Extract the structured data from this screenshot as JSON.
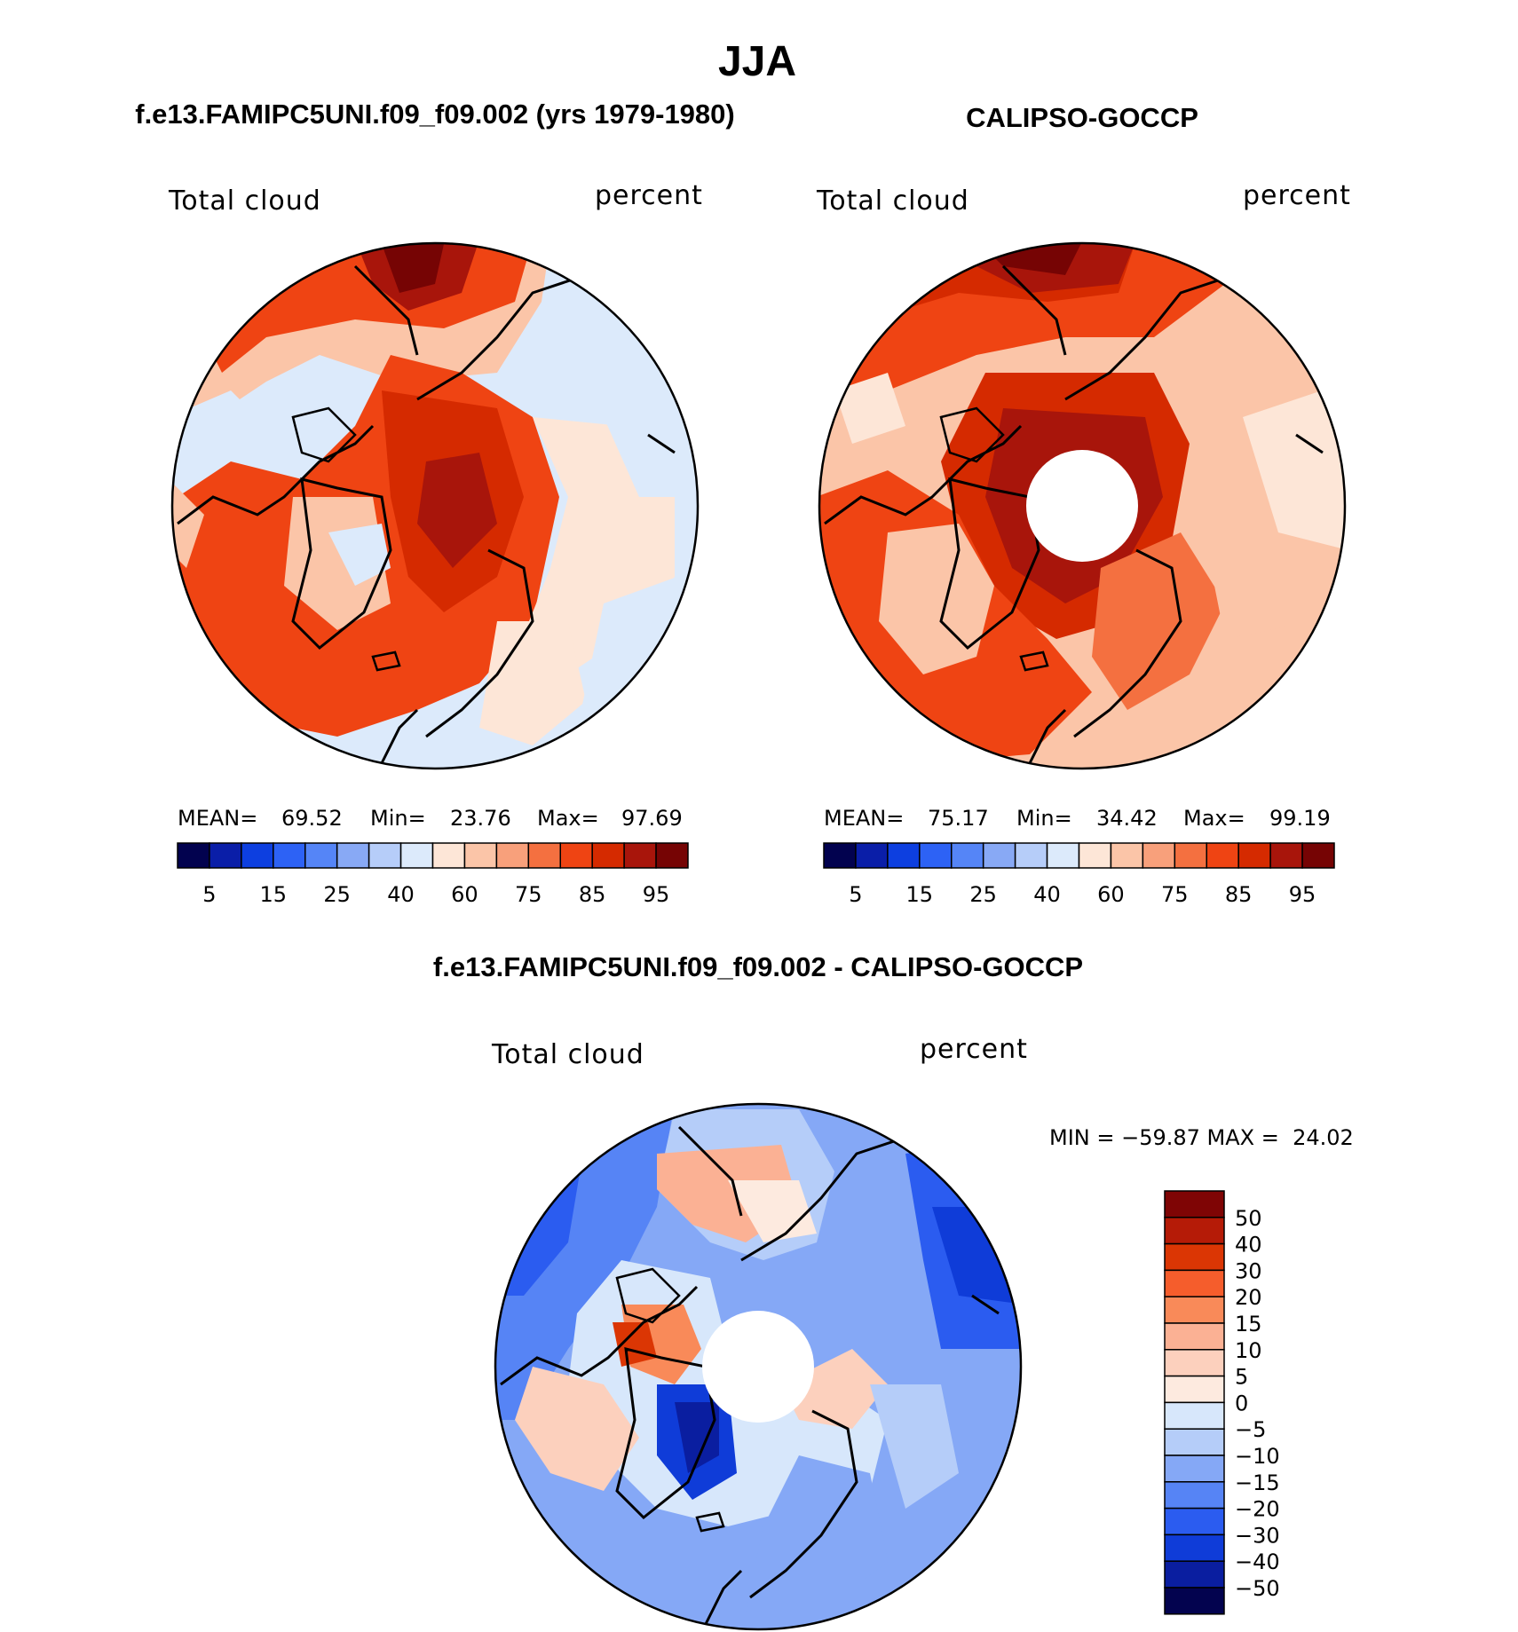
{
  "chart_data": {
    "type": "contour-map",
    "main_title": "JJA",
    "panels": [
      {
        "id": "model",
        "title": "f.e13.FAMIPC5UNI.f09_f09.002 (yrs 1979-1980)",
        "left_label": "Total cloud",
        "right_label": "percent",
        "stats": {
          "mean_label": "MEAN=",
          "mean": "69.52",
          "min_label": "Min=",
          "min": "23.76",
          "max_label": "Max=",
          "max": "97.69"
        },
        "has_pole_hole": false
      },
      {
        "id": "obs",
        "title": "CALIPSO-GOCCP",
        "left_label": "Total cloud",
        "right_label": "percent",
        "stats": {
          "mean_label": "MEAN=",
          "mean": "75.17",
          "min_label": "Min=",
          "min": "34.42",
          "max_label": "Max=",
          "max": "99.19"
        },
        "has_pole_hole": true
      },
      {
        "id": "diff",
        "title": "f.e13.FAMIPC5UNI.f09_f09.002 - CALIPSO-GOCCP",
        "left_label": "Total cloud",
        "right_label": "percent",
        "stats_text": "MIN = −59.87 MAX =  24.02",
        "has_pole_hole": true
      }
    ],
    "abs_colorbar": {
      "levels": [
        5,
        10,
        15,
        20,
        25,
        30,
        40,
        50,
        60,
        70,
        75,
        80,
        85,
        90,
        95
      ],
      "tick_labels": [
        "5",
        "15",
        "25",
        "40",
        "60",
        "75",
        "85",
        "95"
      ],
      "colors": [
        "#02024f",
        "#0a1ea8",
        "#0d3fe0",
        "#2d62f5",
        "#5585f7",
        "#88a9f5",
        "#b6cdf9",
        "#dceafb",
        "#fde6d7",
        "#fbc5a8",
        "#f8a07b",
        "#f47040",
        "#ef4413",
        "#d52a00",
        "#a8150b",
        "#760404"
      ]
    },
    "diff_colorbar": {
      "tick_labels": [
        "50",
        "40",
        "30",
        "20",
        "15",
        "10",
        "5",
        "0",
        "−5",
        "−10",
        "−15",
        "−20",
        "−30",
        "−40",
        "−50"
      ],
      "colors": [
        "#7f0505",
        "#b51b07",
        "#db3604",
        "#f55d2c",
        "#f98a59",
        "#fbb194",
        "#fcd0bd",
        "#fdeadf",
        "#d7e7fb",
        "#b5cdf9",
        "#85a8f6",
        "#5684f5",
        "#2b5cf0",
        "#0f3cd8",
        "#0a1ea0",
        "#03034f"
      ]
    }
  }
}
